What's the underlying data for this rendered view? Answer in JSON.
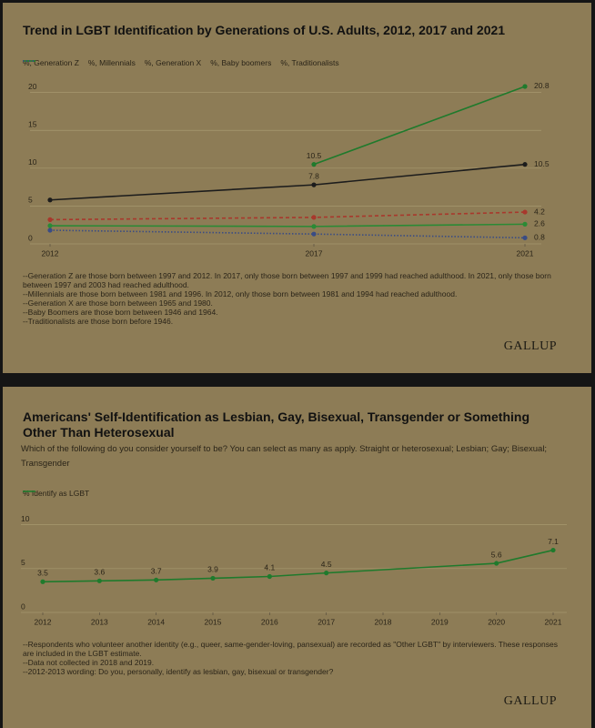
{
  "chart_data": [
    {
      "type": "line",
      "title": "Trend in LGBT Identification by Generations of U.S. Adults, 2012, 2017 and 2021",
      "x": [
        2012,
        2017,
        2021
      ],
      "xlim": [
        2012,
        2021
      ],
      "xticks": [
        2012,
        2017,
        2021
      ],
      "ylim": [
        0,
        22
      ],
      "yticks": [
        0,
        5,
        10,
        15,
        20
      ],
      "grid": true,
      "series": [
        {
          "name": "%, Generation Z",
          "color": "#1f7a2c",
          "style": "solid",
          "values": [
            null,
            10.5,
            20.8
          ],
          "value_labels": [
            null,
            "10.5",
            "20.8"
          ]
        },
        {
          "name": "%, Millennials",
          "color": "#1c1c1c",
          "style": "solid",
          "values": [
            5.8,
            7.8,
            10.5
          ],
          "value_labels": [
            null,
            "7.8",
            "10.5"
          ]
        },
        {
          "name": "%, Generation X",
          "color": "#a8382c",
          "style": "dashed",
          "values": [
            3.2,
            3.5,
            4.2
          ],
          "value_labels": [
            null,
            null,
            "4.2"
          ]
        },
        {
          "name": "%, Baby boomers",
          "color": "#2b8a35",
          "style": "solid",
          "values": [
            2.4,
            2.3,
            2.6
          ],
          "value_labels": [
            null,
            null,
            "2.6"
          ]
        },
        {
          "name": "%, Traditionalists",
          "color": "#3a4c84",
          "style": "dotted",
          "values": [
            1.8,
            1.3,
            0.8
          ],
          "value_labels": [
            null,
            null,
            "0.8"
          ]
        }
      ],
      "notes": [
        "--Generation Z are those born between 1997 and 2012. In 2017, only those born between 1997 and 1999 had reached adulthood. In 2021, only those born between 1997 and 2003 had reached adulthood.",
        "--Millennials are those born between 1981 and 1996. In 2012, only those born between 1981 and 1994 had reached adulthood.",
        "--Generation X are those born between 1965 and 1980.",
        "--Baby Boomers are those born between 1946 and 1964.",
        "--Traditionalists are those born before 1946."
      ],
      "source": "GALLUP"
    },
    {
      "type": "line",
      "title": "Americans' Self-Identification as Lesbian, Gay, Bisexual, Transgender or Something Other Than Heterosexual",
      "subtitle": "Which of the following do you consider yourself to be? You can select as many as apply. Straight or heterosexual; Lesbian; Gay; Bisexual; Transgender",
      "x": [
        2012,
        2013,
        2014,
        2015,
        2016,
        2017,
        2020,
        2021
      ],
      "xlim": [
        2012,
        2021
      ],
      "xticks": [
        2012,
        2013,
        2014,
        2015,
        2016,
        2017,
        2018,
        2019,
        2020,
        2021
      ],
      "ylim": [
        0,
        11
      ],
      "yticks": [
        0,
        5,
        10
      ],
      "grid": true,
      "series": [
        {
          "name": "% Identify as LGBT",
          "color": "#1f7a2c",
          "style": "solid",
          "values": [
            3.5,
            3.6,
            3.7,
            3.9,
            4.1,
            4.5,
            5.6,
            7.1
          ]
        }
      ],
      "notes": [
        "--Respondents who volunteer another identity (e.g., queer, same-gender-loving, pansexual) are recorded as \"Other LGBT\" by interviewers. These responses are included in the LGBT estimate.",
        "--Data not collected in 2018 and 2019.",
        "--2012-2013 wording: Do you, personally, identify as lesbian, gay, bisexual or transgender?"
      ],
      "source": "GALLUP"
    }
  ]
}
